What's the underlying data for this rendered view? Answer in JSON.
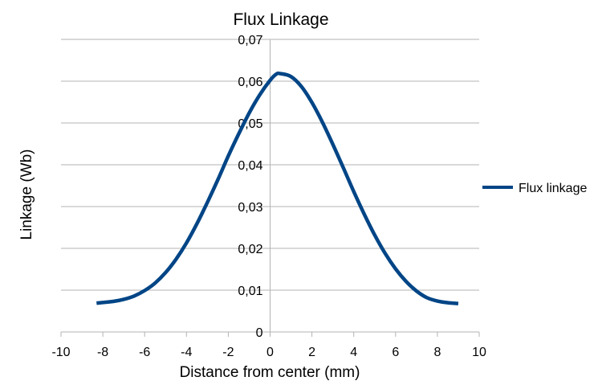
{
  "chart_data": {
    "type": "line",
    "title": "Flux Linkage",
    "xlabel": "Distance from center (mm)",
    "ylabel": "Linkage (Wb)",
    "xlim": [
      -10,
      10
    ],
    "ylim": [
      0,
      0.07
    ],
    "x_ticks": [
      -10,
      -8,
      -6,
      -4,
      -2,
      0,
      2,
      4,
      6,
      8,
      10
    ],
    "y_ticks": [
      0,
      0.01,
      0.02,
      0.03,
      0.04,
      0.05,
      0.06,
      0.07
    ],
    "x_tick_labels": [
      "-10",
      "-8",
      "-6",
      "-4",
      "-2",
      "0",
      "2",
      "4",
      "6",
      "8",
      "10"
    ],
    "y_tick_labels": [
      "0",
      "0,01",
      "0,02",
      "0,03",
      "0,04",
      "0,05",
      "0,06",
      "0,07"
    ],
    "grid": "horizontal",
    "legend_position": "right",
    "series": [
      {
        "name": "Flux linkage",
        "color": "#004586",
        "x": [
          -8.3,
          -7.5,
          -7.0,
          -6.5,
          -6.0,
          -5.5,
          -5.0,
          -4.5,
          -4.0,
          -3.5,
          -3.0,
          -2.5,
          -2.0,
          -1.5,
          -1.0,
          -0.5,
          0.0,
          0.3,
          0.5,
          1.0,
          1.5,
          2.0,
          2.5,
          3.0,
          3.5,
          4.0,
          4.5,
          5.0,
          5.5,
          6.0,
          6.5,
          7.0,
          7.5,
          8.0,
          8.5,
          9.0
        ],
        "y": [
          0.0069,
          0.0073,
          0.0078,
          0.0086,
          0.0099,
          0.0117,
          0.0142,
          0.0174,
          0.0213,
          0.0259,
          0.031,
          0.0364,
          0.0421,
          0.0474,
          0.0524,
          0.0567,
          0.0602,
          0.0617,
          0.0618,
          0.0611,
          0.0587,
          0.0549,
          0.0502,
          0.0449,
          0.0393,
          0.0336,
          0.0282,
          0.0232,
          0.0188,
          0.0151,
          0.0121,
          0.0098,
          0.0082,
          0.0074,
          0.007,
          0.0068
        ]
      }
    ]
  }
}
